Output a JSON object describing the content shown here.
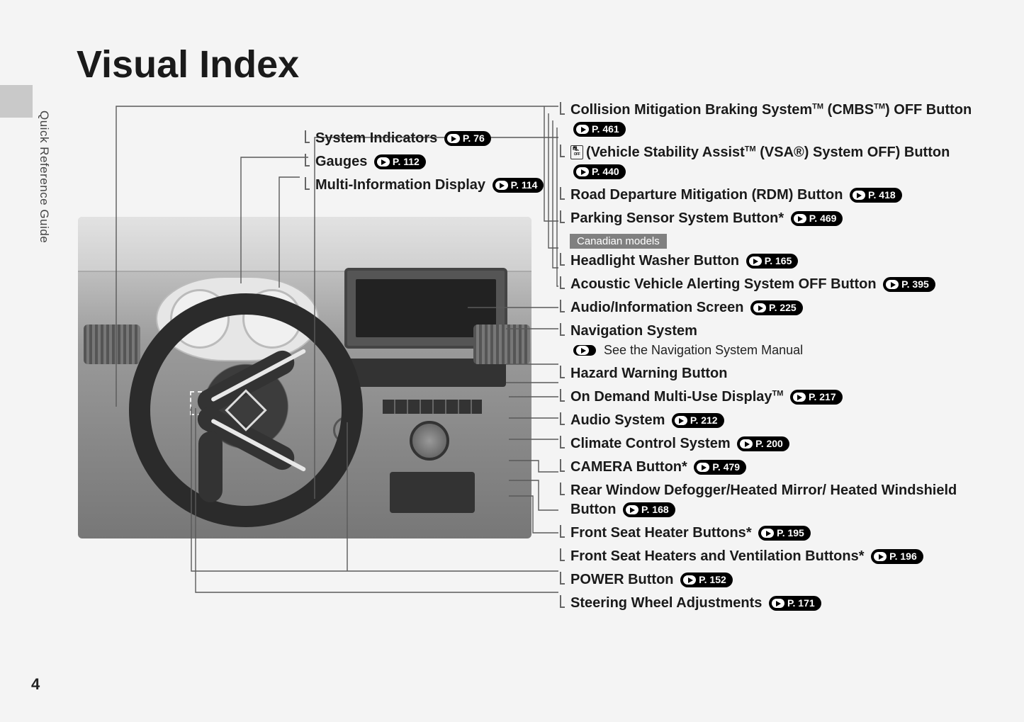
{
  "page": {
    "title": "Visual Index",
    "section": "Quick Reference Guide",
    "number": "4"
  },
  "left_items": [
    {
      "label": "System Indicators",
      "page": "76"
    },
    {
      "label": "Gauges",
      "page": "112"
    },
    {
      "label": "Multi-Information Display",
      "page": "114"
    }
  ],
  "right_items": [
    {
      "label_html": "Collision Mitigation Braking System<sup>TM</sup> (CMBS<sup>TM</sup>) OFF Button",
      "page": "461"
    },
    {
      "vsa_icon": true,
      "label_html": "(Vehicle Stability Assist<sup>TM</sup> (VSA®) System OFF) Button",
      "page": "440"
    },
    {
      "label_html": "Road Departure Mitigation (RDM) Button",
      "page": "418"
    },
    {
      "label_html": "Parking Sensor System Button<span class='ast'>*</span>",
      "page": "469"
    },
    {
      "divider": "Canadian models"
    },
    {
      "label_html": "Headlight Washer Button",
      "page": "165"
    },
    {
      "label_html": "Acoustic Vehicle Alerting System OFF Button",
      "page": "395"
    },
    {
      "label_html": "Audio/Information Screen",
      "page": "225"
    },
    {
      "label_html": "Navigation System",
      "nav_note": "See the Navigation System Manual"
    },
    {
      "label_html": "Hazard Warning Button"
    },
    {
      "label_html": "On Demand Multi-Use Display<sup>TM</sup>",
      "page": "217"
    },
    {
      "label_html": "Audio System",
      "page": "212"
    },
    {
      "label_html": "Climate Control System",
      "page": "200"
    },
    {
      "label_html": "CAMERA Button<span class='ast'>*</span>",
      "page": "479"
    },
    {
      "label_html": "Rear Window Defogger/Heated Mirror/ Heated Windshield Button",
      "page": "168"
    },
    {
      "label_html": "Front Seat Heater Buttons<span class='ast'>*</span>",
      "page": "195"
    },
    {
      "label_html": "Front Seat Heaters and Ventilation Buttons<span class='ast'>*</span>",
      "page": "196"
    },
    {
      "label_html": "POWER Button",
      "page": "152"
    },
    {
      "label_html": "Steering Wheel Adjustments",
      "page": "171"
    }
  ],
  "colors": {
    "page_bg": "#f4f4f4",
    "text": "#1a1a1a",
    "pill_bg": "#000000",
    "pill_fg": "#ffffff",
    "line": "#5a5a5a",
    "badge_bg": "#808080"
  }
}
